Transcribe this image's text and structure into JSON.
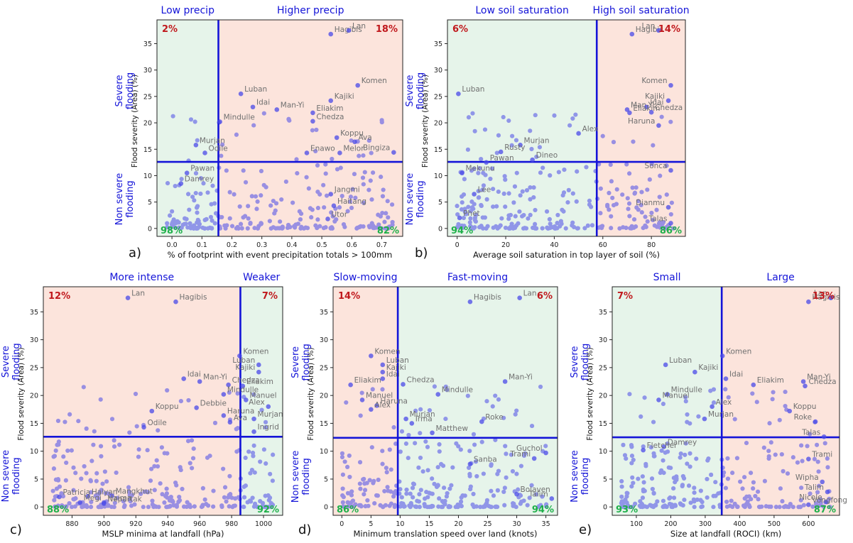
{
  "chart_data": [
    {
      "id": "a",
      "panel_label": "a)",
      "type": "scatter",
      "xlabel": "% of footprint with event precipitation totals > 100mm",
      "ylabel": "Flood severity (Area) (%)",
      "severe_label": "Severe flooding",
      "nonsevere_label": "Non severe flooding",
      "xlim": [
        -0.05,
        0.77
      ],
      "ylim": [
        -1.5,
        39.5
      ],
      "xticks": [
        0.0,
        0.1,
        0.2,
        0.3,
        0.4,
        0.5,
        0.6,
        0.7
      ],
      "xtick_labels": [
        "0.0",
        "0.1",
        "0.2",
        "0.3",
        "0.4",
        "0.5",
        "0.6",
        "0.7"
      ],
      "yticks": [
        0,
        5,
        10,
        15,
        20,
        25,
        30,
        35
      ],
      "x_threshold": 0.155,
      "y_threshold": 12.6,
      "left_header": "Low precip",
      "right_header": "Higher precip",
      "quadrant_fill": {
        "tl": "#e6f4ea",
        "tr": "#fce4dc",
        "bl": "#e6f4ea",
        "br": "#fce4dc"
      },
      "pct": {
        "tl": "2%",
        "tr": "18%",
        "bl": "98%",
        "br": "82%"
      },
      "labeled_points": [
        {
          "name": "Hagibis",
          "x": 0.53,
          "y": 36.8
        },
        {
          "name": "Lan",
          "x": 0.59,
          "y": 37.5
        },
        {
          "name": "Komen",
          "x": 0.62,
          "y": 27.1
        },
        {
          "name": "Luban",
          "x": 0.23,
          "y": 25.5
        },
        {
          "name": "Idai",
          "x": 0.27,
          "y": 23.0
        },
        {
          "name": "Man-Yi",
          "x": 0.35,
          "y": 22.5
        },
        {
          "name": "Kajiki",
          "x": 0.53,
          "y": 24.2
        },
        {
          "name": "Eliakim",
          "x": 0.47,
          "y": 21.9
        },
        {
          "name": "Chedza",
          "x": 0.47,
          "y": 20.3
        },
        {
          "name": "Mindulle",
          "x": 0.16,
          "y": 20.2
        },
        {
          "name": "Koppu",
          "x": 0.55,
          "y": 17.2
        },
        {
          "name": "Ava",
          "x": 0.61,
          "y": 16.4
        },
        {
          "name": "Murjan",
          "x": 0.08,
          "y": 15.8
        },
        {
          "name": "Enawo",
          "x": 0.45,
          "y": 14.3
        },
        {
          "name": "Melor",
          "x": 0.56,
          "y": 14.3
        },
        {
          "name": "Bingiza",
          "x": 0.74,
          "y": 14.4
        },
        {
          "name": "Odile",
          "x": 0.11,
          "y": 14.3
        },
        {
          "name": "Pawan",
          "x": 0.05,
          "y": 10.5
        },
        {
          "name": "Damrey",
          "x": 0.03,
          "y": 8.5
        },
        {
          "name": "Jangmi",
          "x": 0.53,
          "y": 6.5
        },
        {
          "name": "Haitang",
          "x": 0.54,
          "y": 4.3
        },
        {
          "name": "Utor",
          "x": 0.52,
          "y": 1.8
        }
      ]
    },
    {
      "id": "b",
      "panel_label": "b)",
      "type": "scatter",
      "xlabel": "Average soil saturation in top layer of soil (%)",
      "ylabel": "Flood severity (Area) (%)",
      "severe_label": "Severe flooding",
      "nonsevere_label": "Non severe flooding",
      "xlim": [
        -4,
        94
      ],
      "ylim": [
        -1.5,
        39.5
      ],
      "xticks": [
        0,
        20,
        40,
        60,
        80
      ],
      "xtick_labels": [
        "0",
        "20",
        "40",
        "60",
        "80"
      ],
      "yticks": [
        0,
        5,
        10,
        15,
        20,
        25,
        30,
        35
      ],
      "x_threshold": 57.5,
      "y_threshold": 12.6,
      "left_header": "Low soil saturation",
      "right_header": "High soil saturation",
      "quadrant_fill": {
        "tl": "#e6f4ea",
        "tr": "#fce4dc",
        "bl": "#e6f4ea",
        "br": "#fce4dc"
      },
      "pct": {
        "tl": "6%",
        "tr": "14%",
        "bl": "94%",
        "br": "86%"
      },
      "labeled_points": [
        {
          "name": "Hagibis",
          "x": 72,
          "y": 36.8
        },
        {
          "name": "Lan",
          "x": 83,
          "y": 37.5
        },
        {
          "name": "Luban",
          "x": 0.5,
          "y": 25.5
        },
        {
          "name": "Komen",
          "x": 88,
          "y": 27.1
        },
        {
          "name": "Man-Yi",
          "x": 70,
          "y": 22.5
        },
        {
          "name": "Idai",
          "x": 78,
          "y": 23.0
        },
        {
          "name": "Kajiki",
          "x": 87,
          "y": 24.2
        },
        {
          "name": "Eliakim",
          "x": 71,
          "y": 21.9
        },
        {
          "name": "Chedza",
          "x": 80,
          "y": 22.0
        },
        {
          "name": "Haruna",
          "x": 83,
          "y": 19.5
        },
        {
          "name": "Alex",
          "x": 50,
          "y": 18.0
        },
        {
          "name": "Murjan",
          "x": 26,
          "y": 15.8
        },
        {
          "name": "Rusty",
          "x": 18,
          "y": 14.5
        },
        {
          "name": "Pawan",
          "x": 12,
          "y": 12.5
        },
        {
          "name": "Dineo",
          "x": 31,
          "y": 13.0
        },
        {
          "name": "Mekunu",
          "x": 2,
          "y": 10.5
        },
        {
          "name": "Lee",
          "x": 7,
          "y": 6.5
        },
        {
          "name": "Sonca",
          "x": 88,
          "y": 11.0
        },
        {
          "name": "Dianmu",
          "x": 87,
          "y": 4.0
        },
        {
          "name": "Phet",
          "x": 1,
          "y": 2.0
        },
        {
          "name": "Talas",
          "x": 88,
          "y": 1.0
        }
      ]
    },
    {
      "id": "c",
      "panel_label": "c)",
      "type": "scatter",
      "xlabel": "MSLP minima at landfall (hPa)",
      "ylabel": "Flood severity (Area) (%)",
      "severe_label": "Severe flooding",
      "nonsevere_label": "Non severe flooding",
      "xlim": [
        862,
        1012
      ],
      "ylim": [
        -1.5,
        39.5
      ],
      "xticks": [
        880,
        900,
        920,
        940,
        960,
        980,
        1000
      ],
      "xtick_labels": [
        "880",
        "900",
        "920",
        "940",
        "960",
        "980",
        "1000"
      ],
      "yticks": [
        0,
        5,
        10,
        15,
        20,
        25,
        30,
        35
      ],
      "x_threshold": 985.5,
      "y_threshold": 12.6,
      "left_header": "More intense",
      "right_header": "Weaker",
      "quadrant_fill": {
        "tl": "#fce4dc",
        "tr": "#e6f4ea",
        "bl": "#fce4dc",
        "br": "#e6f4ea"
      },
      "pct": {
        "tl": "12%",
        "tr": "7%",
        "bl": "88%",
        "br": "92%"
      },
      "labeled_points": [
        {
          "name": "Lan",
          "x": 915,
          "y": 37.5
        },
        {
          "name": "Hagibis",
          "x": 945,
          "y": 36.8
        },
        {
          "name": "Komen",
          "x": 985,
          "y": 27.1
        },
        {
          "name": "Luban",
          "x": 997,
          "y": 25.5
        },
        {
          "name": "Idai",
          "x": 950,
          "y": 23.0
        },
        {
          "name": "Man-Yi",
          "x": 960,
          "y": 22.5
        },
        {
          "name": "Kajiki",
          "x": 997,
          "y": 24.2
        },
        {
          "name": "Chedza",
          "x": 978,
          "y": 21.9
        },
        {
          "name": "Eliakim",
          "x": 987,
          "y": 21.7
        },
        {
          "name": "Manuel",
          "x": 989,
          "y": 19.2
        },
        {
          "name": "Mindulle",
          "x": 975,
          "y": 20.2
        },
        {
          "name": "Debbie",
          "x": 958,
          "y": 17.8
        },
        {
          "name": "Koppu",
          "x": 930,
          "y": 17.2
        },
        {
          "name": "Alex",
          "x": 1003,
          "y": 18.0
        },
        {
          "name": "Haruna",
          "x": 975,
          "y": 16.4
        },
        {
          "name": "Murjan",
          "x": 994,
          "y": 15.8
        },
        {
          "name": "Ava",
          "x": 979,
          "y": 15.2
        },
        {
          "name": "Odile",
          "x": 925,
          "y": 14.3
        },
        {
          "name": "Ingrid",
          "x": 994,
          "y": 13.5
        },
        {
          "name": "Patricia",
          "x": 872,
          "y": 1.8
        },
        {
          "name": "Haiyan",
          "x": 890,
          "y": 1.9
        },
        {
          "name": "Mangkhut",
          "x": 905,
          "y": 2.0
        },
        {
          "name": "Megi",
          "x": 885,
          "y": 0.8
        },
        {
          "name": "Haima",
          "x": 900,
          "y": 0.8
        },
        {
          "name": "Nepartak",
          "x": 900,
          "y": 0.6
        }
      ]
    },
    {
      "id": "d",
      "panel_label": "d)",
      "type": "scatter",
      "xlabel": "Minimum translation speed over land (knots)",
      "ylabel": "Flood severity (Area) (%)",
      "severe_label": "Severe flooding",
      "nonsevere_label": "Non severe flooding",
      "xlim": [
        -1.5,
        37
      ],
      "ylim": [
        -1.5,
        39.5
      ],
      "xticks": [
        0,
        5,
        10,
        15,
        20,
        25,
        30,
        35
      ],
      "xtick_labels": [
        "0",
        "5",
        "10",
        "15",
        "20",
        "25",
        "30",
        "35"
      ],
      "yticks": [
        0,
        5,
        10,
        15,
        20,
        25,
        30,
        35
      ],
      "x_threshold": 9.6,
      "y_threshold": 12.4,
      "left_header": "Slow-moving",
      "right_header": "Fast-moving",
      "quadrant_fill": {
        "tl": "#fce4dc",
        "tr": "#e6f4ea",
        "bl": "#fce4dc",
        "br": "#e6f4ea"
      },
      "pct": {
        "tl": "14%",
        "tr": "6%",
        "bl": "86%",
        "br": "94%"
      },
      "labeled_points": [
        {
          "name": "Hagibis",
          "x": 22,
          "y": 36.8
        },
        {
          "name": "Lan",
          "x": 30.5,
          "y": 37.5
        },
        {
          "name": "Komen",
          "x": 5,
          "y": 27.1
        },
        {
          "name": "Luban",
          "x": 7,
          "y": 25.5
        },
        {
          "name": "Kajiki",
          "x": 7,
          "y": 24.2
        },
        {
          "name": "Eliakim",
          "x": 1.5,
          "y": 21.9
        },
        {
          "name": "Idai",
          "x": 7,
          "y": 23.0
        },
        {
          "name": "Chedza",
          "x": 10.5,
          "y": 22.0
        },
        {
          "name": "Man-Yi",
          "x": 28,
          "y": 22.5
        },
        {
          "name": "Manuel",
          "x": 3.5,
          "y": 19.2
        },
        {
          "name": "Mindulle",
          "x": 16.5,
          "y": 20.2
        },
        {
          "name": "Haruna",
          "x": 6,
          "y": 18.2
        },
        {
          "name": "Alex",
          "x": 5,
          "y": 17.5
        },
        {
          "name": "Murjan",
          "x": 11,
          "y": 15.8
        },
        {
          "name": "Roke",
          "x": 24,
          "y": 15.3
        },
        {
          "name": "Irma",
          "x": 12,
          "y": 15.0
        },
        {
          "name": "Matthew",
          "x": 15.5,
          "y": 13.3
        },
        {
          "name": "Guchol",
          "x": 35,
          "y": 9.7
        },
        {
          "name": "Trami",
          "x": 33,
          "y": 8.7
        },
        {
          "name": "Sanba",
          "x": 22,
          "y": 7.7
        },
        {
          "name": "Bolaven",
          "x": 30,
          "y": 2.3
        },
        {
          "name": "Talim",
          "x": 36,
          "y": 1.5
        }
      ]
    },
    {
      "id": "e",
      "panel_label": "e)",
      "type": "scatter",
      "xlabel": "Size at landfall (ROCI) (km)",
      "ylabel": "Flood severity (Area) (%)",
      "severe_label": "Severe flooding",
      "nonsevere_label": "Non severe flooding",
      "xlim": [
        30,
        690
      ],
      "ylim": [
        -1.5,
        39.5
      ],
      "xticks": [
        100,
        200,
        300,
        400,
        500,
        600
      ],
      "xtick_labels": [
        "100",
        "200",
        "300",
        "400",
        "500",
        "600"
      ],
      "yticks": [
        0,
        5,
        10,
        15,
        20,
        25,
        30,
        35
      ],
      "x_threshold": 348,
      "y_threshold": 12.5,
      "left_header": "Small",
      "right_header": "Large",
      "quadrant_fill": {
        "tl": "#e6f4ea",
        "tr": "#fce4dc",
        "bl": "#e6f4ea",
        "br": "#fce4dc"
      },
      "pct": {
        "tl": "7%",
        "tr": "13%",
        "bl": "93%",
        "br": "87%"
      },
      "labeled_points": [
        {
          "name": "Hagibis",
          "x": 600,
          "y": 36.8
        },
        {
          "name": "Lan",
          "x": 665,
          "y": 37.5
        },
        {
          "name": "Komen",
          "x": 350,
          "y": 27.1
        },
        {
          "name": "Luban",
          "x": 185,
          "y": 25.5
        },
        {
          "name": "Kajiki",
          "x": 270,
          "y": 24.2
        },
        {
          "name": "Idai",
          "x": 360,
          "y": 23.0
        },
        {
          "name": "Man-Yi",
          "x": 585,
          "y": 22.5
        },
        {
          "name": "Eliakim",
          "x": 440,
          "y": 21.9
        },
        {
          "name": "Chedza",
          "x": 590,
          "y": 21.7
        },
        {
          "name": "Mindulle",
          "x": 190,
          "y": 20.2
        },
        {
          "name": "Manuel",
          "x": 165,
          "y": 19.2
        },
        {
          "name": "Koppu",
          "x": 545,
          "y": 17.2
        },
        {
          "name": "Alex",
          "x": 320,
          "y": 18.0
        },
        {
          "name": "Roke",
          "x": 620,
          "y": 15.3
        },
        {
          "name": "Murjan",
          "x": 298,
          "y": 15.8
        },
        {
          "name": "Talas",
          "x": 645,
          "y": 12.6
        },
        {
          "name": "Damrey",
          "x": 180,
          "y": 10.8
        },
        {
          "name": "Fletcher",
          "x": 120,
          "y": 10.2
        },
        {
          "name": "Trami",
          "x": 600,
          "y": 8.6
        },
        {
          "name": "Wipha",
          "x": 640,
          "y": 4.5
        },
        {
          "name": "Talim",
          "x": 655,
          "y": 2.7
        },
        {
          "name": "Nicole",
          "x": 650,
          "y": 0.9
        },
        {
          "name": "Vongfong",
          "x": 600,
          "y": 0.4
        }
      ]
    }
  ]
}
